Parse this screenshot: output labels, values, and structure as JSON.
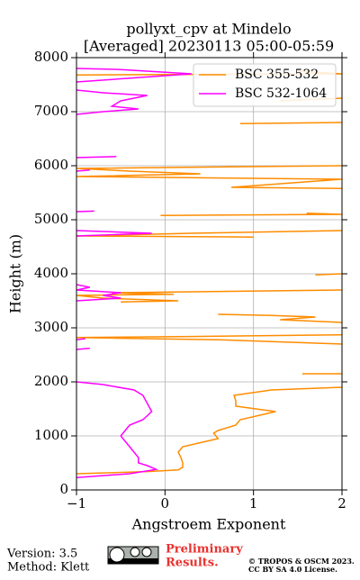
{
  "chart_data": {
    "type": "line",
    "title": [
      "pollyxt_cpv at Mindelo",
      "[Averaged] 20230113 05:00-05:59"
    ],
    "x_label": "Angstroem Exponent",
    "y_label": "Height (m)",
    "xlim": [
      -1,
      2
    ],
    "ylim": [
      0,
      8000
    ],
    "xticks": [
      {
        "value": -1,
        "label": "−1"
      },
      0,
      1,
      2
    ],
    "yticks": [
      0,
      1000,
      2000,
      3000,
      4000,
      5000,
      6000,
      7000,
      8000
    ],
    "grid": true,
    "legend": "upper right",
    "series": [
      {
        "name": "BSC 355-532",
        "color": "#ff8c00",
        "values": [
          -1,
          -0.2,
          0.15,
          0.2,
          0.2,
          0.18,
          0.15,
          0.2,
          0.6,
          0.55,
          0.6,
          0.8,
          0.85,
          1.25,
          0.8,
          0.8,
          0.78,
          1.2,
          2,
          null,
          1.55,
          2,
          null,
          2,
          0.6,
          -1,
          0.3,
          2,
          null,
          2,
          1.3,
          1.7,
          1.2,
          0.6,
          null,
          -0.5,
          0.15,
          -0.7,
          -1,
          0.1,
          -0.6,
          2,
          null,
          1.7,
          2,
          null,
          1,
          -1,
          0.3,
          2,
          null,
          -0.05,
          2,
          1.6,
          null,
          2,
          0.75,
          2,
          -1,
          0.4,
          -0.4,
          -1,
          2,
          null,
          0.85,
          2,
          null,
          1.3,
          2,
          null,
          -1,
          2,
          1.5
        ],
        "heights": [
          300,
          340,
          370,
          420,
          500,
          600,
          700,
          800,
          950,
          1050,
          1100,
          1200,
          1300,
          1450,
          1550,
          1650,
          1750,
          1850,
          1900,
          null,
          2150,
          2150,
          null,
          2700,
          2780,
          2820,
          2840,
          2870,
          null,
          3100,
          3150,
          3200,
          3230,
          3250,
          null,
          3480,
          3500,
          3550,
          3600,
          3620,
          3650,
          3700,
          null,
          3980,
          4000,
          null,
          4680,
          4700,
          4750,
          4800,
          null,
          5080,
          5100,
          5120,
          null,
          5580,
          5600,
          5750,
          5800,
          5850,
          5900,
          5950,
          6000,
          null,
          6780,
          6800,
          null,
          7200,
          7250,
          null,
          7680,
          7700,
          7750
        ]
      },
      {
        "name": "BSC 532-1064",
        "color": "#ff00ff",
        "values": [
          -1,
          -0.4,
          -0.1,
          -0.2,
          -0.3,
          -0.3,
          -0.35,
          -0.4,
          -0.45,
          -0.5,
          -0.45,
          -0.4,
          -0.25,
          -0.15,
          -0.2,
          -0.25,
          -0.35,
          -0.7,
          -1,
          null,
          -1,
          -0.85,
          null,
          -1,
          -0.9,
          null,
          -1,
          -0.5,
          -0.7,
          -0.5,
          -1,
          -0.85,
          -1,
          null,
          -1,
          -0.15,
          -1,
          null,
          -1,
          -0.8,
          null,
          -1,
          -0.85,
          null,
          -1,
          -0.55,
          null,
          -1,
          -0.7,
          -0.3,
          -0.6,
          -0.5,
          -0.2,
          -0.7,
          -1,
          null,
          -1,
          0.3,
          -0.5,
          -1
        ],
        "heights": [
          230,
          300,
          380,
          450,
          500,
          600,
          700,
          800,
          900,
          1000,
          1100,
          1200,
          1300,
          1450,
          1600,
          1750,
          1850,
          1950,
          2000,
          null,
          2600,
          2620,
          null,
          2780,
          2800,
          null,
          3500,
          3550,
          3600,
          3650,
          3700,
          3750,
          3800,
          null,
          4700,
          4750,
          4800,
          null,
          5150,
          5160,
          null,
          5900,
          5920,
          null,
          6150,
          6170,
          null,
          6950,
          7000,
          7050,
          7100,
          7200,
          7300,
          7350,
          7400,
          null,
          7550,
          7700,
          7780,
          7800
        ]
      }
    ]
  },
  "footer": {
    "version": "Version: 3.5",
    "method": "Method: Klett",
    "notice": [
      "Preliminary",
      "Results."
    ],
    "copyright": [
      "© TROPOS & OSCM 2023.",
      "CC BY SA 4.0 License."
    ]
  }
}
